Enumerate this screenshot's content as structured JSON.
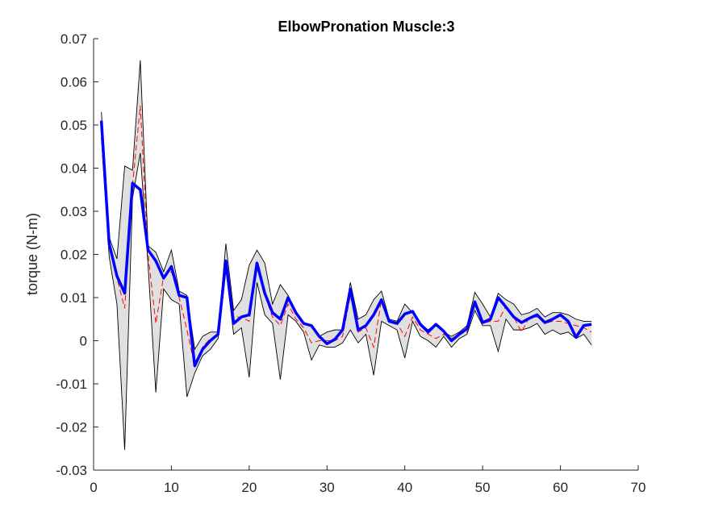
{
  "chart_data": {
    "type": "line",
    "title": "ElbowPronation Muscle:3",
    "xlabel": "",
    "ylabel": "torque (N-m)",
    "xlim": [
      0,
      70
    ],
    "ylim": [
      -0.03,
      0.07
    ],
    "xticks": [
      0,
      10,
      20,
      30,
      40,
      50,
      60,
      70
    ],
    "yticks": [
      -0.03,
      -0.02,
      -0.01,
      0,
      0.01,
      0.02,
      0.03,
      0.04,
      0.05,
      0.06,
      0.07
    ],
    "ytick_labels": [
      "-0.03",
      "-0.02",
      "-0.01",
      "0",
      "0.01",
      "0.02",
      "0.03",
      "0.04",
      "0.05",
      "0.06",
      "0.07"
    ],
    "grid": false,
    "colors": {
      "mean": "#0000ff",
      "median": "#ff0000",
      "band_fill": "#e0e0e0",
      "band_edge": "#000000"
    },
    "x": [
      1,
      2,
      3,
      4,
      5,
      6,
      7,
      8,
      9,
      10,
      11,
      12,
      13,
      14,
      15,
      16,
      17,
      18,
      19,
      20,
      21,
      22,
      23,
      24,
      25,
      26,
      27,
      28,
      29,
      30,
      31,
      32,
      33,
      34,
      35,
      36,
      37,
      38,
      39,
      40,
      41,
      42,
      43,
      44,
      45,
      46,
      47,
      48,
      49,
      50,
      51,
      52,
      53,
      54,
      55,
      56,
      57,
      58,
      59,
      60,
      61,
      62,
      63,
      64
    ],
    "series": [
      {
        "role": "upper",
        "values": [
          0.053,
          0.024,
          0.019,
          0.0405,
          0.0395,
          0.065,
          0.022,
          0.0205,
          0.016,
          0.021,
          0.0115,
          0.0105,
          -0.002,
          0.001,
          0.002,
          0.002,
          0.0225,
          0.007,
          0.0095,
          0.0175,
          0.021,
          0.018,
          0.0085,
          0.013,
          0.0105,
          0.0065,
          0.004,
          0.0035,
          0.001,
          0.002,
          0.0025,
          0.0025,
          0.0135,
          0.005,
          0.006,
          0.0095,
          0.0115,
          0.005,
          0.0045,
          0.0085,
          0.0065,
          0.004,
          0.0025,
          0.004,
          0.002,
          0.001,
          0.002,
          0.0035,
          0.0112,
          0.0085,
          0.0055,
          0.011,
          0.0095,
          0.0085,
          0.006,
          0.0065,
          0.0075,
          0.0055,
          0.0065,
          0.0065,
          0.006,
          0.005,
          0.0045,
          0.0045
        ]
      },
      {
        "role": "lower",
        "values": [
          0.047,
          0.0195,
          0.0085,
          -0.0253,
          0.033,
          0.0435,
          0.0175,
          -0.012,
          0.012,
          0.0095,
          0.0085,
          -0.013,
          -0.0075,
          -0.0035,
          -0.002,
          0.0005,
          0.0165,
          0.0015,
          0.003,
          -0.0085,
          0.0135,
          0.006,
          0.004,
          -0.009,
          0.006,
          0.0045,
          0.002,
          -0.0045,
          -0.001,
          -0.0015,
          -0.0015,
          -0.0005,
          0.0025,
          -0.0005,
          0.0015,
          -0.008,
          0.0045,
          0.0035,
          0.0025,
          -0.004,
          0.0045,
          0.001,
          0.0,
          -0.0015,
          0.001,
          -0.0015,
          0.0005,
          0.0015,
          0.007,
          0.0035,
          0.0035,
          -0.0025,
          0.005,
          0.0025,
          0.0025,
          0.003,
          0.004,
          0.0015,
          0.0025,
          0.0015,
          0.002,
          0.0005,
          0.0015,
          -0.001
        ]
      },
      {
        "role": "median",
        "values": [
          0.0505,
          0.022,
          0.0145,
          0.0075,
          0.036,
          0.0545,
          0.02,
          0.004,
          0.015,
          0.016,
          0.01,
          0.0025,
          -0.006,
          -0.0015,
          0.0005,
          0.0012,
          0.0185,
          0.0055,
          0.0055,
          0.0045,
          0.017,
          0.0105,
          0.0055,
          0.0035,
          0.0085,
          0.005,
          0.003,
          -0.0005,
          0.0,
          0.0,
          0.0,
          0.001,
          0.0105,
          0.002,
          0.003,
          -0.0015,
          0.0095,
          0.0045,
          0.004,
          0.001,
          0.0055,
          0.0025,
          0.0015,
          0.0005,
          0.0015,
          0.0005,
          0.0015,
          0.002,
          0.0095,
          0.004,
          0.0045,
          0.0045,
          0.008,
          0.0055,
          0.002,
          0.0055,
          0.0055,
          0.004,
          0.0045,
          0.0045,
          0.004,
          0.0035,
          0.003,
          0.002
        ]
      },
      {
        "role": "mean",
        "values": [
          0.051,
          0.0225,
          0.015,
          0.011,
          0.0365,
          0.035,
          0.021,
          0.0185,
          0.0145,
          0.0172,
          0.0105,
          0.01,
          -0.0058,
          -0.002,
          0.0,
          0.0015,
          0.0185,
          0.004,
          0.0055,
          0.006,
          0.018,
          0.011,
          0.0065,
          0.005,
          0.01,
          0.0065,
          0.004,
          0.0035,
          0.001,
          -0.0007,
          0.0003,
          0.0025,
          0.012,
          0.0025,
          0.0035,
          0.006,
          0.0095,
          0.0045,
          0.004,
          0.0062,
          0.0068,
          0.0038,
          0.002,
          0.0038,
          0.0022,
          0.0,
          0.0015,
          0.0028,
          0.009,
          0.0042,
          0.005,
          0.01,
          0.0078,
          0.0055,
          0.0042,
          0.0052,
          0.006,
          0.0042,
          0.005,
          0.006,
          0.0045,
          0.0008,
          0.0035,
          0.0038
        ]
      }
    ]
  }
}
